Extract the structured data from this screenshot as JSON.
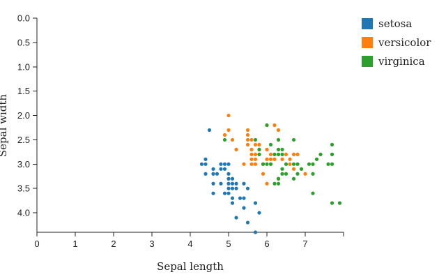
{
  "chart_data": {
    "type": "scatter",
    "title": "",
    "xlabel": "Sepal length",
    "ylabel": "Sepal width",
    "xlim": [
      0,
      8
    ],
    "ylim": [
      4.4,
      0.0
    ],
    "x_ticks": [
      "0",
      "1",
      "2",
      "3",
      "4",
      "5",
      "6",
      "7"
    ],
    "y_ticks": [
      "0.0",
      "0.5",
      "1.0",
      "1.5",
      "2.0",
      "2.5",
      "3.0",
      "3.5",
      "4.0"
    ],
    "grid": false,
    "legend_position": "top-right",
    "series": [
      {
        "name": "setosa",
        "color": "#1f77b4",
        "points": [
          [
            4.5,
            2.3
          ],
          [
            4.3,
            3.0
          ],
          [
            4.4,
            2.9
          ],
          [
            4.4,
            3.0
          ],
          [
            4.4,
            3.2
          ],
          [
            4.6,
            3.1
          ],
          [
            4.6,
            3.2
          ],
          [
            4.6,
            3.4
          ],
          [
            4.6,
            3.6
          ],
          [
            4.7,
            3.2
          ],
          [
            4.8,
            3.0
          ],
          [
            4.8,
            3.1
          ],
          [
            4.8,
            3.4
          ],
          [
            4.9,
            3.0
          ],
          [
            4.9,
            3.1
          ],
          [
            4.9,
            3.6
          ],
          [
            5.0,
            3.0
          ],
          [
            5.0,
            3.2
          ],
          [
            5.0,
            3.3
          ],
          [
            5.0,
            3.4
          ],
          [
            5.0,
            3.5
          ],
          [
            5.0,
            3.6
          ],
          [
            5.1,
            3.3
          ],
          [
            5.1,
            3.4
          ],
          [
            5.1,
            3.5
          ],
          [
            5.1,
            3.7
          ],
          [
            5.1,
            3.8
          ],
          [
            5.2,
            3.4
          ],
          [
            5.2,
            3.5
          ],
          [
            5.2,
            4.1
          ],
          [
            5.3,
            3.7
          ],
          [
            5.4,
            3.4
          ],
          [
            5.4,
            3.7
          ],
          [
            5.4,
            3.9
          ],
          [
            5.5,
            3.5
          ],
          [
            5.5,
            4.2
          ],
          [
            5.7,
            3.8
          ],
          [
            5.7,
            4.4
          ],
          [
            5.8,
            4.0
          ]
        ]
      },
      {
        "name": "versicolor",
        "color": "#ff7f0e",
        "points": [
          [
            5.0,
            2.0
          ],
          [
            4.9,
            2.4
          ],
          [
            5.0,
            2.3
          ],
          [
            5.1,
            2.5
          ],
          [
            5.2,
            2.7
          ],
          [
            5.4,
            3.0
          ],
          [
            5.5,
            2.3
          ],
          [
            5.5,
            2.4
          ],
          [
            5.5,
            2.5
          ],
          [
            5.5,
            2.6
          ],
          [
            5.6,
            2.5
          ],
          [
            5.6,
            2.7
          ],
          [
            5.6,
            2.8
          ],
          [
            5.6,
            2.9
          ],
          [
            5.6,
            3.0
          ],
          [
            5.7,
            2.6
          ],
          [
            5.7,
            2.8
          ],
          [
            5.7,
            2.9
          ],
          [
            5.7,
            3.0
          ],
          [
            5.8,
            2.6
          ],
          [
            5.8,
            2.7
          ],
          [
            5.9,
            3.0
          ],
          [
            5.9,
            3.2
          ],
          [
            6.0,
            2.2
          ],
          [
            6.0,
            2.7
          ],
          [
            6.0,
            2.9
          ],
          [
            6.0,
            3.4
          ],
          [
            6.1,
            2.8
          ],
          [
            6.1,
            2.9
          ],
          [
            6.1,
            3.0
          ],
          [
            6.2,
            2.2
          ],
          [
            6.2,
            2.9
          ],
          [
            6.3,
            2.3
          ],
          [
            6.3,
            2.5
          ],
          [
            6.3,
            3.3
          ],
          [
            6.4,
            2.9
          ],
          [
            6.5,
            2.8
          ],
          [
            6.6,
            2.9
          ],
          [
            6.6,
            3.0
          ],
          [
            6.7,
            2.8
          ],
          [
            6.7,
            3.1
          ],
          [
            6.8,
            2.8
          ],
          [
            6.9,
            3.1
          ],
          [
            7.0,
            3.2
          ]
        ]
      },
      {
        "name": "virginica",
        "color": "#2ca02c",
        "points": [
          [
            4.9,
            2.5
          ],
          [
            5.7,
            2.5
          ],
          [
            5.8,
            2.7
          ],
          [
            5.8,
            2.8
          ],
          [
            5.9,
            3.0
          ],
          [
            6.0,
            2.2
          ],
          [
            6.0,
            3.0
          ],
          [
            6.1,
            2.6
          ],
          [
            6.1,
            3.0
          ],
          [
            6.2,
            2.8
          ],
          [
            6.2,
            3.4
          ],
          [
            6.3,
            2.5
          ],
          [
            6.3,
            2.7
          ],
          [
            6.3,
            2.8
          ],
          [
            6.3,
            3.3
          ],
          [
            6.3,
            3.4
          ],
          [
            6.4,
            2.7
          ],
          [
            6.4,
            2.8
          ],
          [
            6.4,
            3.1
          ],
          [
            6.4,
            3.2
          ],
          [
            6.5,
            3.0
          ],
          [
            6.5,
            3.2
          ],
          [
            6.7,
            2.5
          ],
          [
            6.7,
            3.0
          ],
          [
            6.7,
            3.3
          ],
          [
            6.8,
            3.0
          ],
          [
            6.8,
            3.2
          ],
          [
            6.9,
            3.1
          ],
          [
            7.1,
            3.0
          ],
          [
            7.2,
            3.0
          ],
          [
            7.2,
            3.2
          ],
          [
            7.2,
            3.6
          ],
          [
            7.3,
            2.9
          ],
          [
            7.4,
            2.8
          ],
          [
            7.6,
            3.0
          ],
          [
            7.7,
            2.6
          ],
          [
            7.7,
            2.8
          ],
          [
            7.7,
            3.0
          ],
          [
            7.7,
            3.8
          ],
          [
            7.9,
            3.8
          ]
        ]
      }
    ]
  }
}
